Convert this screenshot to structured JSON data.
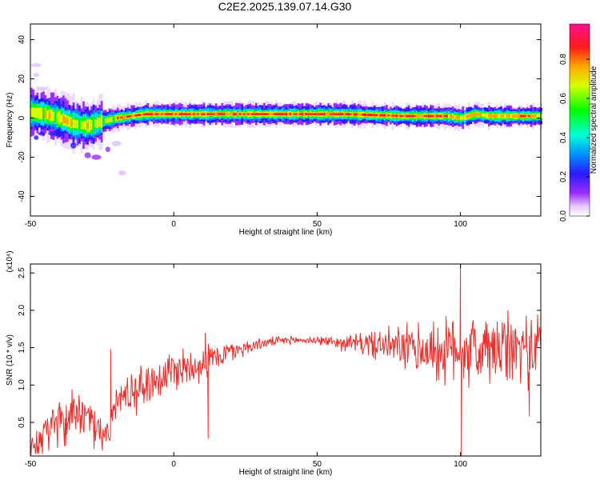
{
  "title": "C2E2.2025.139.07.14.G30",
  "colors": {
    "snr_line": "#e8312f"
  },
  "chart_data": [
    {
      "type": "heatmap",
      "name": "spectrogram",
      "xlabel": "Height of straight line (km)",
      "ylabel": "Frequency (Hz)",
      "xlim": [
        -50,
        128
      ],
      "ylim": [
        -50,
        48
      ],
      "xticks": [
        -50,
        0,
        50,
        100
      ],
      "yticks": [
        -40,
        -20,
        0,
        20,
        40
      ],
      "ridge": [
        [
          -50,
          3
        ],
        [
          -45,
          2
        ],
        [
          -40,
          0
        ],
        [
          -35,
          -3
        ],
        [
          -30,
          -4
        ],
        [
          -26,
          -2
        ],
        [
          -20,
          0
        ],
        [
          -15,
          1
        ],
        [
          -10,
          2
        ],
        [
          0,
          2
        ],
        [
          20,
          2
        ],
        [
          40,
          2
        ],
        [
          60,
          2
        ],
        [
          80,
          1
        ],
        [
          95,
          1
        ],
        [
          100,
          0
        ],
        [
          105,
          2
        ],
        [
          110,
          1
        ],
        [
          120,
          1
        ],
        [
          128,
          1
        ]
      ],
      "colorbar": {
        "label": "Normalized spectral amplitude",
        "ticks": [
          "0.0",
          "0.2",
          "0.4",
          "0.6",
          "0.8"
        ],
        "range": [
          0,
          0.98
        ]
      }
    },
    {
      "type": "line",
      "name": "snr",
      "xlabel": "Height of straight line (km)",
      "ylabel": "SNR (10 * v/v)",
      "scale_label": "(x10⁴)",
      "xlim": [
        -50,
        128
      ],
      "ylim": [
        0.05,
        2.62
      ],
      "xticks": [
        -50,
        0,
        50,
        100
      ],
      "yticks": [
        "0.5",
        "1.0",
        "1.5",
        "2.0",
        "2.5"
      ],
      "envelope": [
        [
          -50,
          0.2
        ],
        [
          -45,
          0.35
        ],
        [
          -40,
          0.55
        ],
        [
          -35,
          0.7
        ],
        [
          -30,
          0.55
        ],
        [
          -25,
          0.4
        ],
        [
          -22,
          0.45
        ],
        [
          -20,
          0.8
        ],
        [
          -15,
          0.9
        ],
        [
          -10,
          1.0
        ],
        [
          -5,
          1.1
        ],
        [
          0,
          1.2
        ],
        [
          5,
          1.25
        ],
        [
          10,
          1.3
        ],
        [
          15,
          1.38
        ],
        [
          20,
          1.45
        ],
        [
          25,
          1.5
        ],
        [
          30,
          1.55
        ],
        [
          35,
          1.58
        ],
        [
          40,
          1.6
        ],
        [
          45,
          1.6
        ],
        [
          50,
          1.6
        ],
        [
          55,
          1.58
        ],
        [
          60,
          1.56
        ],
        [
          65,
          1.56
        ],
        [
          70,
          1.54
        ],
        [
          75,
          1.52
        ],
        [
          80,
          1.5
        ],
        [
          85,
          1.48
        ],
        [
          90,
          1.45
        ],
        [
          95,
          1.45
        ],
        [
          100,
          1.5
        ],
        [
          105,
          1.45
        ],
        [
          110,
          1.45
        ],
        [
          115,
          1.45
        ],
        [
          120,
          1.48
        ],
        [
          125,
          1.5
        ],
        [
          128,
          1.5
        ]
      ],
      "noise": [
        [
          -50,
          0.12
        ],
        [
          -40,
          0.25
        ],
        [
          -30,
          0.2
        ],
        [
          -22,
          0.15
        ],
        [
          -15,
          0.25
        ],
        [
          0,
          0.25
        ],
        [
          10,
          0.2
        ],
        [
          20,
          0.12
        ],
        [
          30,
          0.06
        ],
        [
          45,
          0.04
        ],
        [
          55,
          0.06
        ],
        [
          65,
          0.12
        ],
        [
          75,
          0.2
        ],
        [
          85,
          0.3
        ],
        [
          95,
          0.38
        ],
        [
          105,
          0.42
        ],
        [
          115,
          0.42
        ],
        [
          128,
          0.4
        ]
      ],
      "spikes": [
        [
          -22,
          1.48
        ],
        [
          11,
          1.7
        ],
        [
          12,
          0.28
        ],
        [
          100,
          2.62
        ],
        [
          100.3,
          0.05
        ],
        [
          124,
          0.58
        ]
      ]
    }
  ]
}
